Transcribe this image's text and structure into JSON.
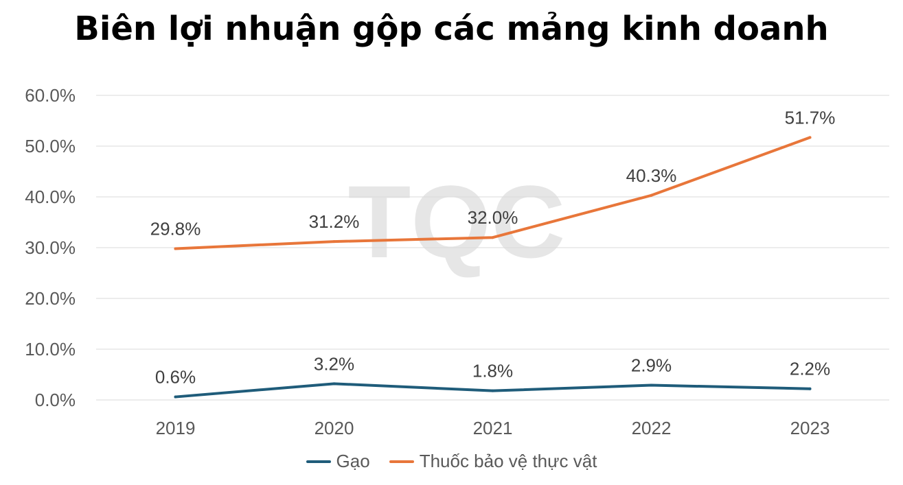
{
  "title": "Biên lợi nhuận gộp các mảng kinh doanh",
  "watermark": "TQC",
  "colors": {
    "gao": "#1f5c7a",
    "thuoc": "#e8763a",
    "grid": "#d9d9d9"
  },
  "chart_data": {
    "type": "line",
    "categories": [
      "2019",
      "2020",
      "2021",
      "2022",
      "2023"
    ],
    "ylim": [
      0,
      60
    ],
    "yticks": [
      "0.0%",
      "10.0%",
      "20.0%",
      "30.0%",
      "40.0%",
      "50.0%",
      "60.0%"
    ],
    "grid": true,
    "legend_position": "bottom",
    "series": [
      {
        "name": "Gạo",
        "values": [
          0.6,
          3.2,
          1.8,
          2.9,
          2.2
        ],
        "labels": [
          "0.6%",
          "3.2%",
          "1.8%",
          "2.9%",
          "2.2%"
        ]
      },
      {
        "name": "Thuốc bảo vệ thực vật",
        "values": [
          29.8,
          31.2,
          32.0,
          40.3,
          51.7
        ],
        "labels": [
          "29.8%",
          "31.2%",
          "32.0%",
          "40.3%",
          "51.7%"
        ]
      }
    ]
  }
}
